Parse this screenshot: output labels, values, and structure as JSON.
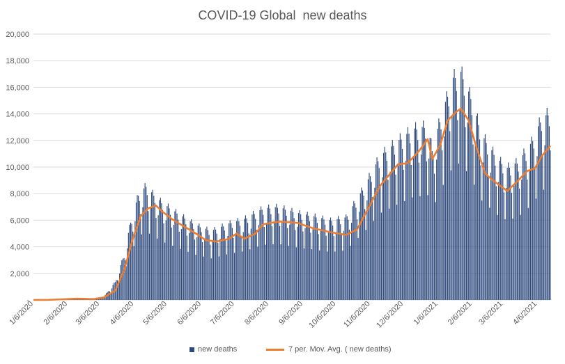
{
  "chart_data": {
    "type": "bar",
    "title": "COVID-19 Global  new deaths",
    "xlabel": "",
    "ylabel": "",
    "ylim": [
      0,
      20000
    ],
    "y_ticks": [
      "-",
      "2,000",
      "4,000",
      "6,000",
      "8,000",
      "10,000",
      "12,000",
      "14,000",
      "16,000",
      "18,000",
      "20,000"
    ],
    "x_tick_labels": [
      "1/6/2020",
      "2/6/2020",
      "3/6/2020",
      "4/6/2020",
      "5/6/2020",
      "6/6/2020",
      "7/6/2020",
      "8/6/2020",
      "9/6/2020",
      "10/6/2020",
      "11/6/2020",
      "12/6/2020",
      "1/6/2021",
      "2/6/2021",
      "3/6/2021",
      "4/6/2021"
    ],
    "x_range": [
      "2020-01-06",
      "2021-04-18"
    ],
    "grid": true,
    "legend_position": "bottom",
    "colors": {
      "bar": "#2e4a7d",
      "line": "#ed7d31",
      "grid": "#d9d9d9",
      "text": "#595959"
    },
    "series": [
      {
        "name": "new deaths",
        "kind": "bar",
        "points": [
          [
            "2020-01-06",
            0
          ],
          [
            "2020-01-20",
            10
          ],
          [
            "2020-02-03",
            60
          ],
          [
            "2020-02-17",
            120
          ],
          [
            "2020-03-01",
            80
          ],
          [
            "2020-03-10",
            250
          ],
          [
            "2020-03-20",
            1200
          ],
          [
            "2020-03-28",
            3000
          ],
          [
            "2020-04-03",
            5200
          ],
          [
            "2020-04-10",
            7000
          ],
          [
            "2020-04-17",
            7600
          ],
          [
            "2020-04-24",
            7000
          ],
          [
            "2020-05-01",
            6500
          ],
          [
            "2020-05-15",
            5800
          ],
          [
            "2020-06-01",
            5000
          ],
          [
            "2020-06-15",
            4600
          ],
          [
            "2020-07-01",
            5100
          ],
          [
            "2020-07-15",
            5400
          ],
          [
            "2020-08-01",
            6100
          ],
          [
            "2020-08-15",
            6200
          ],
          [
            "2020-09-01",
            5800
          ],
          [
            "2020-09-15",
            5600
          ],
          [
            "2020-10-01",
            5300
          ],
          [
            "2020-10-15",
            5500
          ],
          [
            "2020-11-01",
            7600
          ],
          [
            "2020-11-15",
            9600
          ],
          [
            "2020-12-01",
            10600
          ],
          [
            "2020-12-15",
            11400
          ],
          [
            "2020-12-28",
            11600
          ],
          [
            "2021-01-01",
            10000
          ],
          [
            "2021-01-10",
            12500
          ],
          [
            "2021-01-20",
            14800
          ],
          [
            "2021-01-27",
            15200
          ],
          [
            "2021-02-05",
            13500
          ],
          [
            "2021-02-15",
            11000
          ],
          [
            "2021-03-01",
            9400
          ],
          [
            "2021-03-10",
            8800
          ],
          [
            "2021-03-20",
            9200
          ],
          [
            "2021-04-01",
            10500
          ],
          [
            "2021-04-10",
            12100
          ],
          [
            "2021-04-18",
            12500
          ]
        ]
      },
      {
        "name": "7 per. Mov. Avg. ( new deaths)",
        "kind": "line",
        "points": [
          [
            "2020-01-06",
            0
          ],
          [
            "2020-01-20",
            10
          ],
          [
            "2020-02-01",
            50
          ],
          [
            "2020-02-15",
            100
          ],
          [
            "2020-03-01",
            70
          ],
          [
            "2020-03-10",
            200
          ],
          [
            "2020-03-20",
            700
          ],
          [
            "2020-03-28",
            2200
          ],
          [
            "2020-04-05",
            4600
          ],
          [
            "2020-04-12",
            6300
          ],
          [
            "2020-04-19",
            6900
          ],
          [
            "2020-04-26",
            7100
          ],
          [
            "2020-05-01",
            6700
          ],
          [
            "2020-05-10",
            6100
          ],
          [
            "2020-05-20",
            5600
          ],
          [
            "2020-06-01",
            5000
          ],
          [
            "2020-06-10",
            4500
          ],
          [
            "2020-06-20",
            4400
          ],
          [
            "2020-07-01",
            4600
          ],
          [
            "2020-07-08",
            5000
          ],
          [
            "2020-07-15",
            4600
          ],
          [
            "2020-07-25",
            5000
          ],
          [
            "2020-08-01",
            5700
          ],
          [
            "2020-08-15",
            5900
          ],
          [
            "2020-09-01",
            5800
          ],
          [
            "2020-09-15",
            5400
          ],
          [
            "2020-10-01",
            5100
          ],
          [
            "2020-10-15",
            4900
          ],
          [
            "2020-10-25",
            5300
          ],
          [
            "2020-11-01",
            6400
          ],
          [
            "2020-11-15",
            8600
          ],
          [
            "2020-12-01",
            10200
          ],
          [
            "2020-12-10",
            10300
          ],
          [
            "2020-12-20",
            11200
          ],
          [
            "2020-12-28",
            12100
          ],
          [
            "2021-01-01",
            10600
          ],
          [
            "2021-01-08",
            11600
          ],
          [
            "2021-01-15",
            13500
          ],
          [
            "2021-01-22",
            14100
          ],
          [
            "2021-01-27",
            14400
          ],
          [
            "2021-02-03",
            13500
          ],
          [
            "2021-02-10",
            11500
          ],
          [
            "2021-02-18",
            9500
          ],
          [
            "2021-02-25",
            9000
          ],
          [
            "2021-03-05",
            8500
          ],
          [
            "2021-03-10",
            8200
          ],
          [
            "2021-03-20",
            9000
          ],
          [
            "2021-03-28",
            9700
          ],
          [
            "2021-04-04",
            9900
          ],
          [
            "2021-04-10",
            10800
          ],
          [
            "2021-04-18",
            11600
          ]
        ]
      }
    ]
  }
}
